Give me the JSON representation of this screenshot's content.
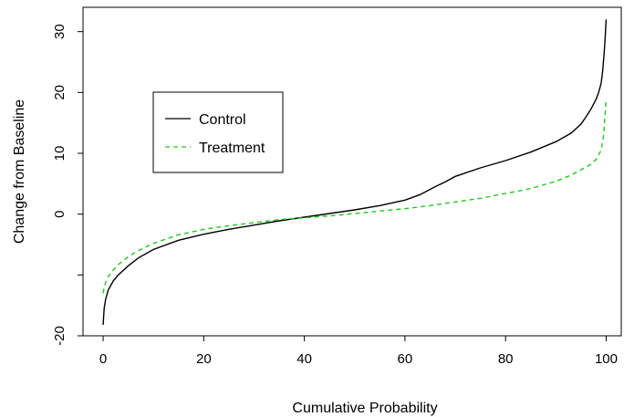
{
  "chart_data": {
    "type": "line",
    "title": "",
    "xlabel": "Cumulative Probability",
    "ylabel": "Change from Baseline",
    "xlim": [
      -4,
      103
    ],
    "ylim": [
      -20,
      34
    ],
    "x_ticks": [
      0,
      20,
      40,
      60,
      80,
      100
    ],
    "y_ticks": [
      -20,
      0,
      10,
      20,
      30
    ],
    "legend": {
      "placement": "upper-left",
      "entries": [
        "Control",
        "Treatment"
      ]
    },
    "series": [
      {
        "name": "Control",
        "color": "#000000",
        "style": "solid",
        "x": [
          0,
          0.2,
          0.5,
          1,
          2,
          3,
          5,
          7,
          10,
          15,
          20,
          25,
          30,
          35,
          40,
          45,
          50,
          55,
          60,
          63,
          66,
          68,
          70,
          75,
          80,
          85,
          90,
          93,
          95,
          96,
          97,
          98,
          98.5,
          99,
          99.3,
          99.6,
          99.8,
          100
        ],
        "values": [
          -18.2,
          -15.5,
          -14,
          -12.5,
          -11,
          -10,
          -8.5,
          -7.2,
          -5.8,
          -4.3,
          -3.3,
          -2.5,
          -1.8,
          -1.1,
          -0.5,
          0.1,
          0.7,
          1.4,
          2.3,
          3.2,
          4.5,
          5.3,
          6.2,
          7.6,
          8.8,
          10.2,
          11.9,
          13.3,
          14.8,
          16,
          17.3,
          18.9,
          20,
          21.5,
          23.5,
          26.5,
          29,
          32
        ]
      },
      {
        "name": "Treatment",
        "color": "#1fc91f",
        "style": "dashed",
        "x": [
          0,
          0.2,
          0.5,
          1,
          2,
          3,
          5,
          7,
          10,
          15,
          20,
          25,
          30,
          35,
          40,
          45,
          50,
          55,
          60,
          65,
          70,
          75,
          80,
          85,
          90,
          93,
          95,
          97,
          98,
          99,
          99.5,
          100
        ],
        "values": [
          -13,
          -12,
          -11.2,
          -10.3,
          -9.2,
          -8.3,
          -7,
          -6,
          -4.8,
          -3.4,
          -2.5,
          -1.9,
          -1.4,
          -0.9,
          -0.6,
          -0.3,
          0.1,
          0.5,
          0.9,
          1.4,
          2,
          2.6,
          3.4,
          4.2,
          5.4,
          6.4,
          7.3,
          8.2,
          9,
          10.5,
          13,
          19
        ]
      }
    ]
  }
}
